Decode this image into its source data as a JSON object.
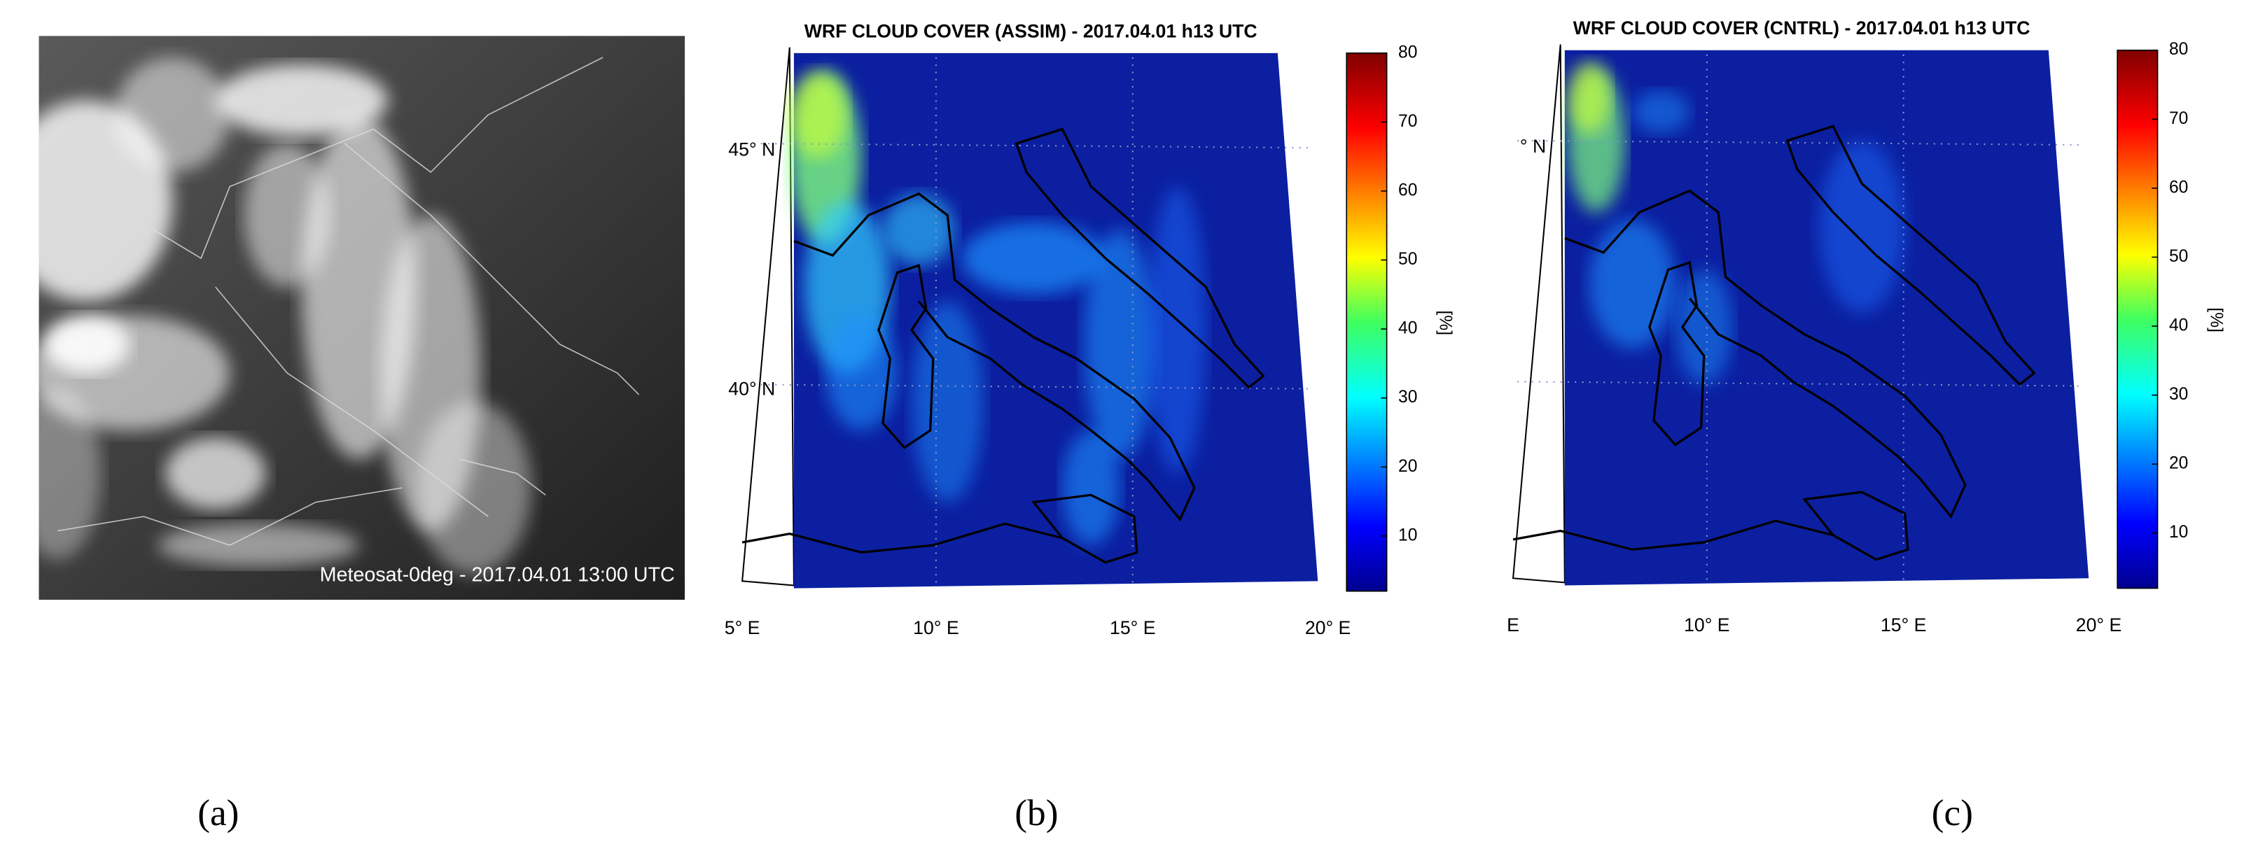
{
  "panels": [
    {
      "caption": "(a)",
      "label": "Meteosat-0deg - 2017.04.01 13:00 UTC"
    },
    {
      "caption": "(b)",
      "title": "WRF CLOUD COVER (ASSIM) - 2017.04.01 h13 UTC",
      "lat_labels": [
        "45° N",
        "40° N"
      ],
      "lon_labels": [
        "5° E",
        "10° E",
        "15° E",
        "20° E"
      ],
      "colorbar": {
        "label": "[%]",
        "lim": [
          2,
          80
        ],
        "ticks": [
          10,
          20,
          30,
          40,
          50,
          60,
          70,
          80
        ]
      }
    },
    {
      "caption": "(c)",
      "title": "WRF CLOUD COVER (CNTRL) - 2017.04.01 h13 UTC",
      "lat_labels": [
        "° N"
      ],
      "lon_labels": [
        "E",
        "10° E",
        "15° E",
        "20° E"
      ],
      "colorbar": {
        "label": "[%]",
        "lim": [
          2,
          80
        ],
        "ticks": [
          10,
          20,
          30,
          40,
          50,
          60,
          70,
          80
        ]
      }
    }
  ]
}
